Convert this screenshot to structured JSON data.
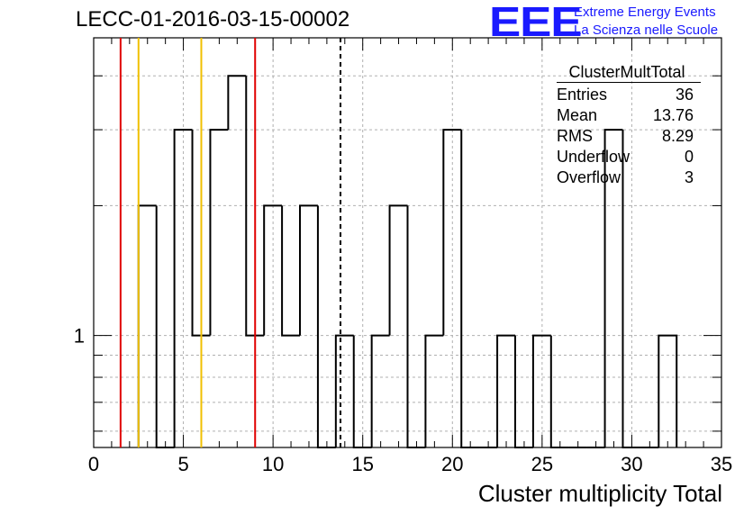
{
  "header": {
    "title": "LECC-01-2016-03-15-00002",
    "logo_text": "EEE",
    "logo_line1": "Extreme Energy Events",
    "logo_line2": "La Scienza nelle Scuole"
  },
  "stats_box": {
    "name": "ClusterMultTotal",
    "rows": [
      {
        "label": "Entries",
        "value": "36"
      },
      {
        "label": "Mean",
        "value": "13.76"
      },
      {
        "label": "RMS",
        "value": "8.29"
      },
      {
        "label": "Underflow",
        "value": "0"
      },
      {
        "label": "Overflow",
        "value": "3"
      }
    ]
  },
  "colors": {
    "red": "#e00000",
    "yellow": "#f0c000",
    "histogram": "#000000",
    "grid": "#b0b0b0"
  },
  "chart_data": {
    "type": "bar",
    "style": "step-histogram",
    "xlabel": "Cluster multiplicity Total",
    "xlim": [
      0,
      35
    ],
    "xticks": [
      0,
      5,
      10,
      15,
      20,
      25,
      30,
      35
    ],
    "y_scale": "log",
    "ylim": [
      0.55,
      4.9
    ],
    "yticks_labeled": [
      1
    ],
    "bin_width": 1,
    "bin_edges": [
      2.5,
      3.5,
      4.5,
      5.5,
      6.5,
      7.5,
      8.5,
      9.5,
      10.5,
      11.5,
      12.5,
      13.5,
      14.5,
      15.5,
      16.5,
      17.5,
      18.5,
      19.5,
      20.5,
      21.5,
      22.5,
      23.5,
      24.5,
      25.5,
      26.5,
      27.5,
      28.5,
      29.5,
      30.5,
      31.5,
      32.5
    ],
    "counts": [
      2,
      0,
      3,
      1,
      3,
      4,
      1,
      2,
      1,
      2,
      0,
      1,
      0,
      1,
      2,
      0,
      1,
      3,
      0,
      0,
      1,
      0,
      1,
      0,
      0,
      0,
      3,
      0,
      0,
      1
    ],
    "grid": true,
    "vertical_lines": [
      {
        "x": 1.5,
        "color": "red",
        "style": "solid"
      },
      {
        "x": 2.5,
        "color": "yellow",
        "style": "solid"
      },
      {
        "x": 6.0,
        "color": "yellow",
        "style": "solid"
      },
      {
        "x": 9.0,
        "color": "red",
        "style": "solid"
      },
      {
        "x": 13.76,
        "color": "black",
        "style": "dashed"
      }
    ]
  }
}
